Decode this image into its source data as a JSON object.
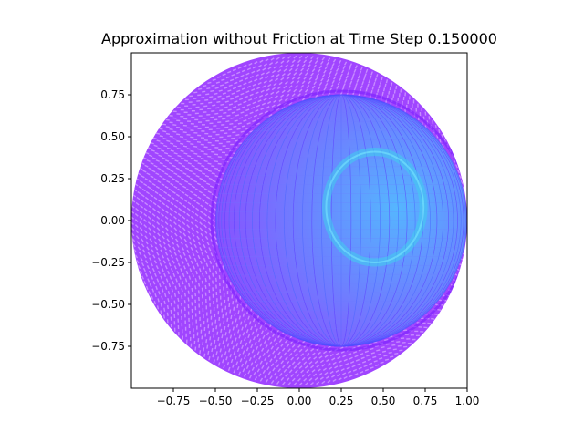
{
  "chart_data": {
    "type": "scatter",
    "title": "Approximation without Friction at Time Step 0.150000",
    "xlabel": "",
    "ylabel": "",
    "xlim": [
      -1.0,
      1.0
    ],
    "ylim": [
      -1.0,
      1.0
    ],
    "aspect": "equal",
    "grid": false,
    "xticks": [
      -0.75,
      -0.5,
      -0.25,
      0.0,
      0.25,
      0.5,
      0.75,
      1.0
    ],
    "xtick_labels": [
      "−0.75",
      "−0.50",
      "−0.25",
      "0.00",
      "0.25",
      "0.50",
      "0.75",
      "1.00"
    ],
    "yticks": [
      0.75,
      0.5,
      0.25,
      0.0,
      -0.25,
      -0.5,
      -0.75
    ],
    "ytick_labels": [
      "0.75",
      "0.50",
      "0.25",
      "0.00",
      "−0.25",
      "−0.50",
      "−0.75"
    ],
    "colormap": "cool",
    "colors": {
      "low": "#9b3bff",
      "mid": "#6b7cff",
      "high": "#3fd0ee",
      "edge": "#8b3cff"
    },
    "shape": {
      "outer_disk": {
        "center": [
          0.0,
          0.0
        ],
        "radius": 1.0
      },
      "inner_sphere": {
        "center": [
          0.25,
          0.0
        ],
        "radius": 0.75
      },
      "highlight_ring": {
        "center": [
          0.45,
          0.08
        ],
        "radius_x": 0.29,
        "radius_y": 0.33
      }
    }
  }
}
